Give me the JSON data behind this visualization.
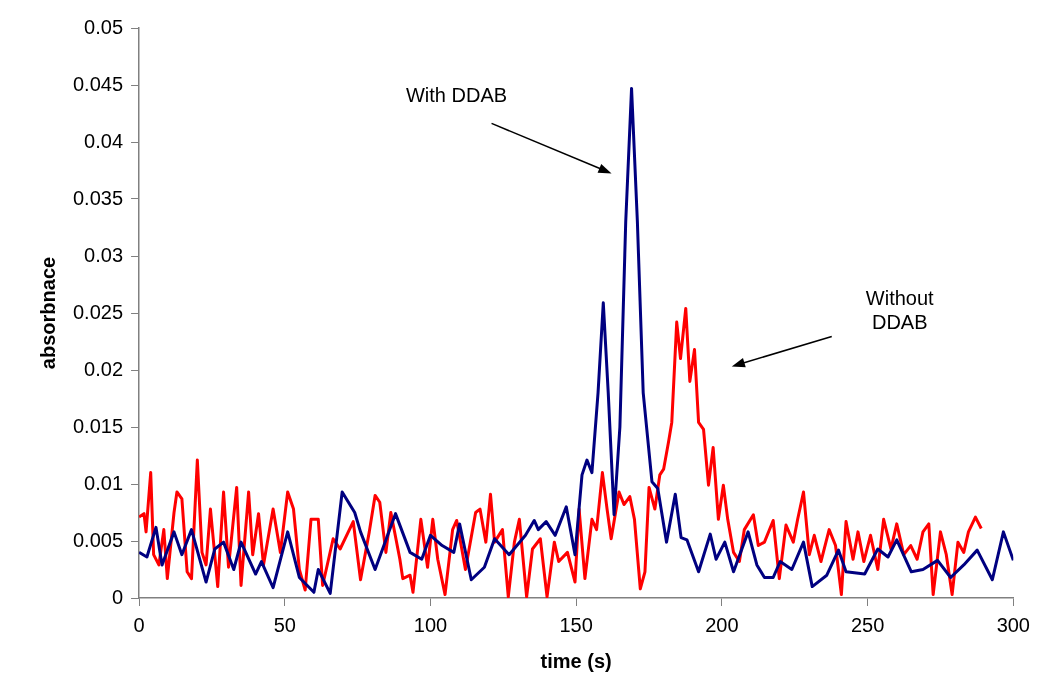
{
  "chart_data": {
    "type": "line",
    "xlabel": "time (s)",
    "ylabel": "absorbnace",
    "xlim": [
      0,
      300
    ],
    "xticks": [
      0,
      50,
      100,
      150,
      200,
      250,
      300
    ],
    "ylim": [
      0,
      0.05
    ],
    "yticks": [
      0,
      0.005,
      0.01,
      0.015,
      0.02,
      0.025,
      0.03,
      0.035,
      0.04,
      0.045,
      0.05
    ],
    "grid": false,
    "legend": false,
    "marker": "none",
    "line_style": "solid",
    "series": [
      {
        "color": "#000080",
        "x": [
          0,
          2.7,
          5.8,
          7.9,
          12,
          14.7,
          18,
          23,
          26,
          29,
          32.5,
          35,
          40,
          42,
          46,
          51,
          55,
          60,
          61.5,
          65.6,
          69.7,
          74,
          76,
          81,
          88,
          93,
          97,
          100,
          104,
          108,
          110,
          114,
          118.5,
          122,
          127,
          132.6,
          135.6,
          137,
          139.7,
          142.8,
          146.6,
          149.6,
          152,
          153.7,
          155.4,
          157.5,
          159.3,
          161,
          163,
          165,
          167,
          169,
          171,
          173,
          176,
          178,
          181,
          184,
          186,
          188,
          192,
          196,
          198,
          201,
          204,
          209,
          212,
          214.6,
          217.6,
          220,
          224,
          228,
          231,
          236,
          240,
          242.6,
          249,
          253.5,
          257,
          260,
          265,
          269,
          274,
          278.5,
          283,
          287.6,
          292.8,
          296.6,
          300
        ],
        "values": [
          0.004,
          0.0036,
          0.0062,
          0.0029,
          0.0058,
          0.0038,
          0.006,
          0.0014,
          0.0043,
          0.0049,
          0.0025,
          0.0049,
          0.0021,
          0.0032,
          0.0009,
          0.0058,
          0.0018,
          0.0005,
          0.0025,
          0.0004,
          0.0093,
          0.0075,
          0.0058,
          0.0025,
          0.0074,
          0.004,
          0.0034,
          0.0055,
          0.0046,
          0.004,
          0.0065,
          0.0016,
          0.0027,
          0.0052,
          0.0038,
          0.0055,
          0.0068,
          0.006,
          0.0067,
          0.0055,
          0.008,
          0.0038,
          0.0108,
          0.0121,
          0.011,
          0.018,
          0.0259,
          0.018,
          0.0073,
          0.015,
          0.033,
          0.0447,
          0.033,
          0.018,
          0.0102,
          0.0096,
          0.0049,
          0.0091,
          0.0053,
          0.0051,
          0.0023,
          0.0056,
          0.0034,
          0.0049,
          0.0023,
          0.0058,
          0.0029,
          0.0018,
          0.0018,
          0.0032,
          0.0025,
          0.0049,
          0.001,
          0.002,
          0.0042,
          0.0023,
          0.0021,
          0.0043,
          0.0036,
          0.0051,
          0.0023,
          0.0025,
          0.0033,
          0.0018,
          0.0029,
          0.0042,
          0.0016,
          0.0058,
          0.0033
        ]
      },
      {
        "color": "#ff0000",
        "x": [
          0,
          1.7,
          2.4,
          4,
          5,
          6.8,
          8.5,
          9.7,
          12,
          13,
          14.7,
          16.5,
          18,
          20,
          21.6,
          23,
          24.5,
          27,
          29,
          30.7,
          33.5,
          35,
          37.6,
          39,
          41,
          42.7,
          46,
          48.5,
          51,
          53,
          55,
          57,
          59,
          61.5,
          63,
          66.6,
          69,
          73.5,
          76,
          79,
          81,
          82.6,
          84.7,
          86.4,
          89.5,
          90.5,
          93,
          94,
          96.7,
          99,
          100.8,
          102.5,
          105,
          107.6,
          109,
          112,
          115.5,
          117,
          119,
          120.6,
          122,
          124.7,
          126.7,
          128.8,
          130.5,
          133,
          135,
          137.7,
          140,
          142.5,
          144,
          147,
          149.6,
          151,
          153,
          155.4,
          157,
          159,
          160.6,
          162,
          164.7,
          166.4,
          168.4,
          170,
          172,
          173.6,
          175,
          177,
          178.7,
          180,
          181.7,
          182.8,
          184.5,
          185.8,
          187.6,
          189,
          190.6,
          192,
          193.7,
          195.4,
          197,
          198.8,
          200.5,
          202,
          204,
          206,
          207.7,
          210.8,
          212.5,
          214.6,
          217.6,
          219.7,
          222,
          224.5,
          226,
          228,
          230,
          231.7,
          234,
          236.8,
          239,
          241,
          242.6,
          245,
          246.7,
          248.7,
          251,
          253.5,
          255.5,
          258,
          260,
          262.4,
          264.8,
          267,
          269,
          271,
          272.5,
          275,
          277,
          279,
          281,
          283,
          284.6,
          287,
          289
        ],
        "values": [
          0.0071,
          0.0074,
          0.0058,
          0.011,
          0.0038,
          0.0029,
          0.006,
          0.0017,
          0.0075,
          0.0093,
          0.0087,
          0.0023,
          0.0017,
          0.0121,
          0.004,
          0.0029,
          0.0078,
          0.001,
          0.0093,
          0.0027,
          0.0097,
          0.0011,
          0.0093,
          0.0038,
          0.0074,
          0.0029,
          0.0078,
          0.004,
          0.0093,
          0.0078,
          0.0025,
          0.0007,
          0.0069,
          0.0069,
          0.0011,
          0.0052,
          0.0043,
          0.0067,
          0.0016,
          0.0058,
          0.009,
          0.0084,
          0.004,
          0.0075,
          0.0034,
          0.0017,
          0.002,
          0.0005,
          0.0069,
          0.0027,
          0.0069,
          0.0034,
          0.0003,
          0.006,
          0.0068,
          0.0025,
          0.0075,
          0.0078,
          0.0049,
          0.0091,
          0.0049,
          0.006,
          0.0001,
          0.0049,
          0.0069,
          0.0001,
          0.0043,
          0.0052,
          0.0001,
          0.0049,
          0.0032,
          0.004,
          0.0014,
          0.0078,
          0.0017,
          0.0069,
          0.006,
          0.011,
          0.0078,
          0.0052,
          0.0093,
          0.0082,
          0.0089,
          0.0069,
          0.0008,
          0.0023,
          0.0097,
          0.0078,
          0.0108,
          0.0113,
          0.0137,
          0.0154,
          0.0242,
          0.021,
          0.0254,
          0.019,
          0.0218,
          0.0154,
          0.0148,
          0.0099,
          0.0132,
          0.0069,
          0.0099,
          0.0069,
          0.004,
          0.0032,
          0.006,
          0.0073,
          0.0046,
          0.0049,
          0.0068,
          0.0017,
          0.0064,
          0.0049,
          0.0069,
          0.0093,
          0.0038,
          0.0055,
          0.0032,
          0.006,
          0.0046,
          0.0003,
          0.0067,
          0.0034,
          0.0058,
          0.0032,
          0.0055,
          0.0025,
          0.0069,
          0.0043,
          0.0065,
          0.0038,
          0.0046,
          0.0034,
          0.0058,
          0.0065,
          0.0003,
          0.0058,
          0.0038,
          0.0003,
          0.0049,
          0.004,
          0.0058,
          0.0071,
          0.0061
        ]
      }
    ],
    "annotations": [
      "With DDAB",
      "Without\nDDAB"
    ]
  }
}
